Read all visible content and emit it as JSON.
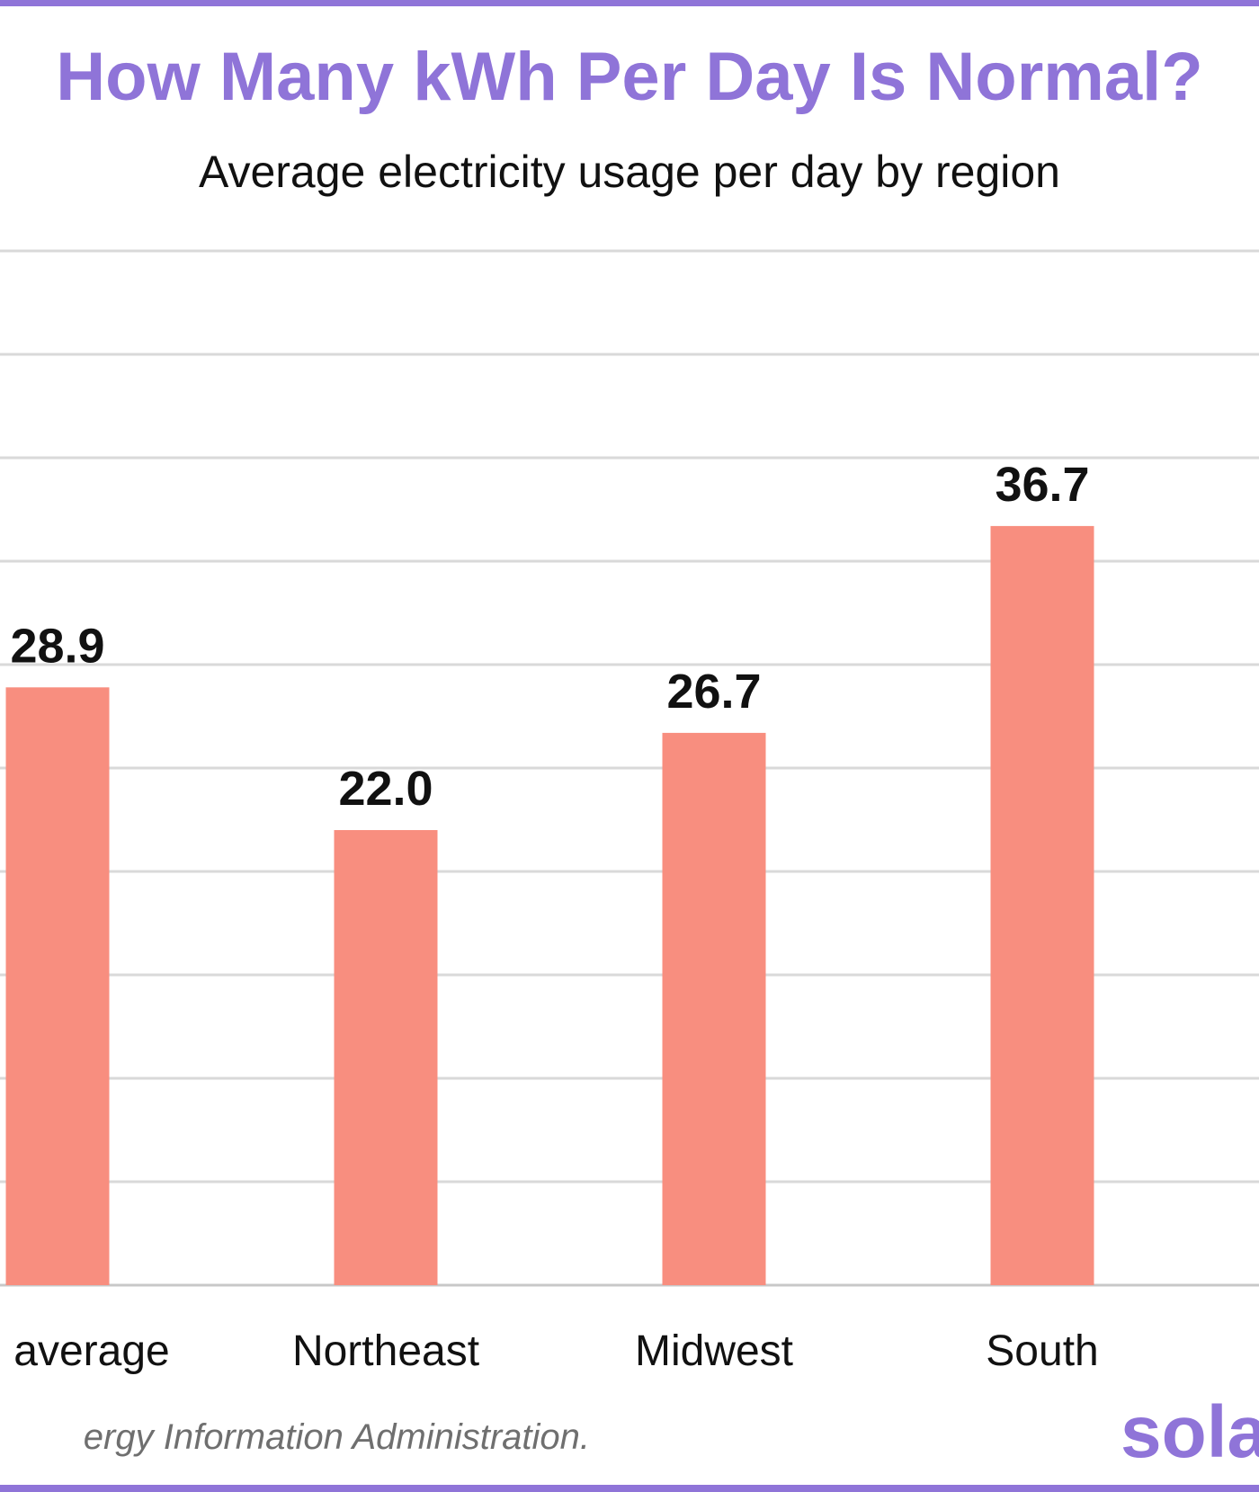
{
  "header": {
    "title": "How Many kWh Per Day Is Normal?",
    "subtitle": "Average electricity usage per day by region"
  },
  "chart_data": {
    "type": "bar",
    "title": "How Many kWh Per Day Is Normal?",
    "subtitle": "Average electricity usage per day by region",
    "categories": [
      "average",
      "Northeast",
      "Midwest",
      "South"
    ],
    "values": [
      28.9,
      22.0,
      26.7,
      36.7
    ],
    "value_labels": [
      "28.9",
      "22.0",
      "26.7",
      "36.7"
    ],
    "ylim": [
      0,
      50
    ],
    "grid": true,
    "bar_color": "#f88e7f"
  },
  "footer": {
    "source": "ergy Information Administration.",
    "logo": "sola"
  },
  "colors": {
    "accent": "#8f74d8",
    "bar": "#f88e7f",
    "grid": "#d9d9d9"
  }
}
